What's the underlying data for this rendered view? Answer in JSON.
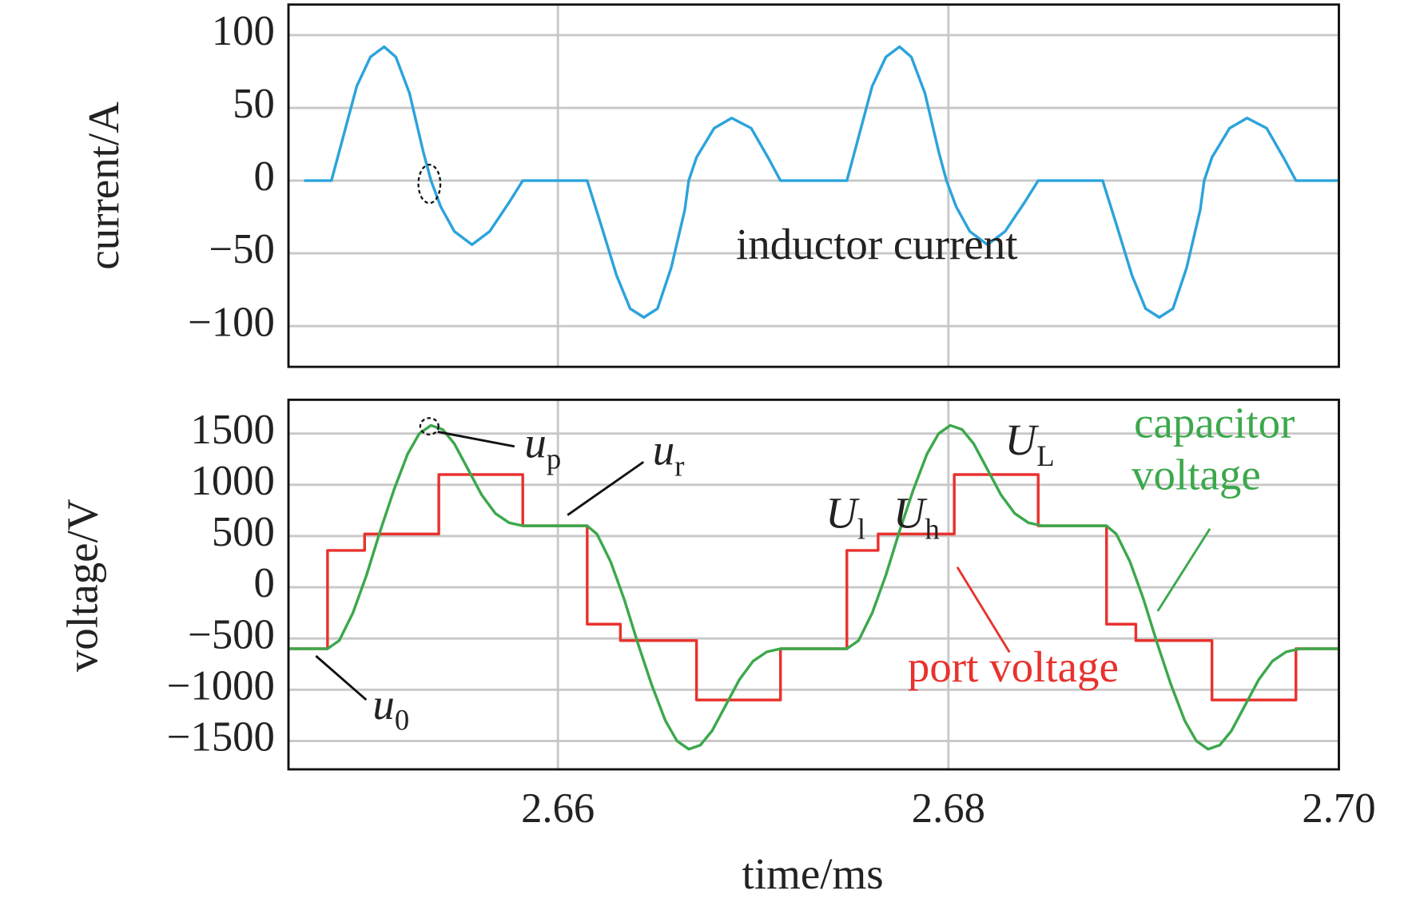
{
  "chart_data": [
    {
      "type": "line",
      "ylabel": "current/A",
      "xlim": [
        2.6462,
        2.7
      ],
      "ylim": [
        -128,
        121
      ],
      "yticks": [
        100,
        50,
        0,
        {
          "value": -50,
          "label": "−50"
        },
        {
          "value": -100,
          "label": "−100"
        }
      ],
      "grid": true,
      "x": [
        2.647,
        2.6484,
        2.649,
        2.6497,
        2.6504,
        2.6511,
        2.6517,
        2.6524,
        2.6531,
        2.6535,
        2.654,
        2.6547,
        2.6556,
        2.6565,
        2.6575,
        2.6582,
        2.6615,
        2.6622,
        2.663,
        2.6637,
        2.6644,
        2.6651,
        2.6658,
        2.6665,
        2.6667,
        2.6671,
        2.668,
        2.6689,
        2.6699,
        2.6708,
        2.6714,
        2.6748,
        2.6754,
        2.6761,
        2.6768,
        2.6775,
        2.6781,
        2.6788,
        2.6795,
        2.6799,
        2.6804,
        2.6811,
        2.682,
        2.6829,
        2.6839,
        2.6846,
        2.6879,
        2.6886,
        2.6894,
        2.6901,
        2.6908,
        2.6915,
        2.6922,
        2.6929,
        2.6931,
        2.6935,
        2.6944,
        2.6953,
        2.6963,
        2.6972,
        2.6978,
        2.7
      ],
      "series": [
        {
          "color": "#2ca3dc",
          "values": [
            0,
            0,
            30,
            65,
            85,
            92,
            85,
            60,
            20,
            0,
            -18,
            -35,
            -44,
            -35,
            -15,
            0,
            0,
            -30,
            -65,
            -88,
            -94,
            -88,
            -60,
            -20,
            0,
            16,
            36,
            43,
            36,
            15,
            0,
            0,
            30,
            65,
            85,
            92,
            85,
            60,
            20,
            0,
            -18,
            -35,
            -44,
            -35,
            -15,
            0,
            0,
            -30,
            -65,
            -88,
            -94,
            -88,
            -60,
            -20,
            0,
            16,
            36,
            43,
            36,
            15,
            0,
            0
          ]
        }
      ],
      "annotations": [
        {
          "text": "inductor current"
        }
      ]
    },
    {
      "type": "line",
      "ylabel": "voltage/V",
      "xlabel": "time/ms",
      "xlim": [
        2.6462,
        2.7
      ],
      "ylim": [
        -1777,
        1830
      ],
      "xticks": [
        2.66,
        2.68,
        {
          "value": 2.7,
          "label": "2.70"
        }
      ],
      "yticks": [
        1500,
        1000,
        500,
        0,
        {
          "value": -500,
          "label": "−500"
        },
        {
          "value": -1000,
          "label": "−1000"
        },
        {
          "value": -1500,
          "label": "−1500"
        }
      ],
      "grid": true,
      "series": [
        {
          "color": "#e8322e",
          "x": [
            2.6462,
            2.6482,
            2.6482,
            2.6501,
            2.6501,
            2.6539,
            2.6539,
            2.6582,
            2.6582,
            2.6615,
            2.6615,
            2.6632,
            2.6632,
            2.6671,
            2.6671,
            2.6714,
            2.6714,
            2.6748,
            2.6748,
            2.6764,
            2.6764,
            2.6803,
            2.6803,
            2.6846,
            2.6846,
            2.6881,
            2.6881,
            2.6896,
            2.6896,
            2.6935,
            2.6935,
            2.6978,
            2.6978,
            2.7
          ],
          "values": [
            -600,
            -600,
            360,
            360,
            520,
            520,
            1100,
            1100,
            600,
            600,
            -360,
            -360,
            -520,
            -520,
            -1100,
            -1100,
            -600,
            -600,
            360,
            360,
            520,
            520,
            1100,
            1100,
            600,
            600,
            -360,
            -360,
            -520,
            -520,
            -1100,
            -1100,
            -600,
            -600
          ]
        },
        {
          "color": "#3ca84c",
          "x": [
            2.6462,
            2.6482,
            2.6488,
            2.6495,
            2.6502,
            2.6509,
            2.6516,
            2.6523,
            2.6529,
            2.6535,
            2.6541,
            2.6547,
            2.6554,
            2.6561,
            2.6568,
            2.6575,
            2.6582,
            2.6615,
            2.662,
            2.6627,
            2.6634,
            2.6641,
            2.6648,
            2.6655,
            2.6661,
            2.6667,
            2.6673,
            2.6679,
            2.6686,
            2.6693,
            2.67,
            2.6707,
            2.6714,
            2.6748,
            2.6754,
            2.6761,
            2.6768,
            2.6775,
            2.6782,
            2.6789,
            2.6795,
            2.6801,
            2.6807,
            2.6813,
            2.682,
            2.6827,
            2.6834,
            2.6841,
            2.6848,
            2.6881,
            2.6886,
            2.6893,
            2.69,
            2.6907,
            2.6914,
            2.6921,
            2.6927,
            2.6933,
            2.6939,
            2.6945,
            2.6952,
            2.6959,
            2.6966,
            2.6973,
            2.698,
            2.7
          ],
          "values": [
            -600,
            -600,
            -520,
            -250,
            120,
            550,
            950,
            1300,
            1500,
            1580,
            1540,
            1400,
            1150,
            900,
            720,
            630,
            600,
            600,
            520,
            250,
            -120,
            -550,
            -950,
            -1300,
            -1500,
            -1580,
            -1540,
            -1400,
            -1150,
            -900,
            -720,
            -630,
            -600,
            -600,
            -520,
            -250,
            120,
            550,
            950,
            1300,
            1500,
            1580,
            1540,
            1400,
            1150,
            900,
            720,
            630,
            600,
            600,
            520,
            250,
            -120,
            -550,
            -950,
            -1300,
            -1500,
            -1580,
            -1540,
            -1400,
            -1150,
            -900,
            -720,
            -630,
            -600,
            -600
          ]
        }
      ],
      "annotations": [
        {
          "text": "u",
          "sub": "p"
        },
        {
          "text": "u",
          "sub": "r"
        },
        {
          "text": "u",
          "sub": "0"
        },
        {
          "text": "U",
          "sub": "l"
        },
        {
          "text": "U",
          "sub": "h"
        },
        {
          "text": "U",
          "sub": "L"
        },
        {
          "text": "capacitor",
          "color": "#3ca84c"
        },
        {
          "text": "voltage",
          "color": "#3ca84c"
        },
        {
          "text": "port voltage",
          "color": "#e8322e"
        }
      ]
    }
  ]
}
